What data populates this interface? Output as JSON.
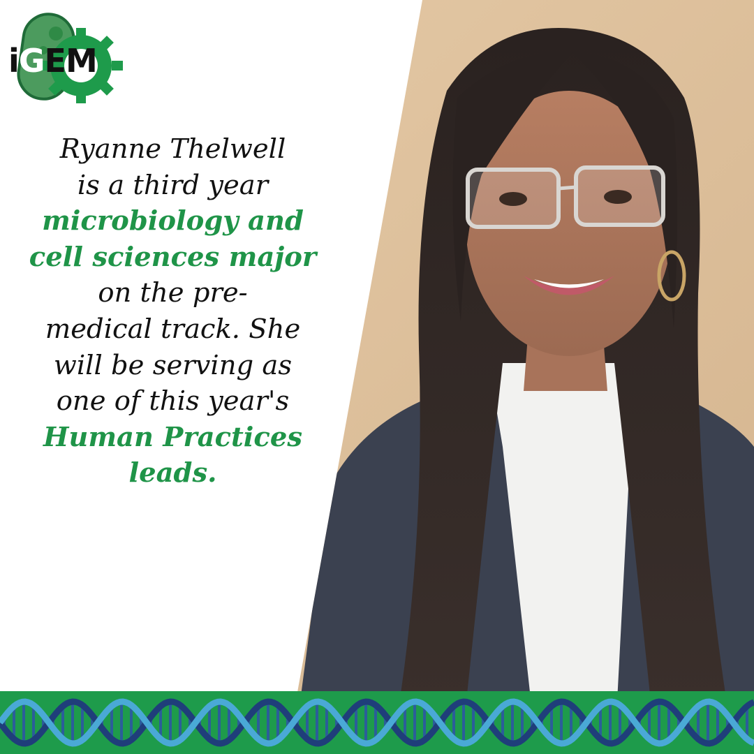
{
  "logo": {
    "letters": [
      "i",
      "G",
      "E",
      "M"
    ]
  },
  "bio": {
    "lines": [
      {
        "text": "Ryanne Thelwell",
        "highlight": false
      },
      {
        "text": "is a third year",
        "highlight": false
      },
      {
        "text": "microbiology and",
        "highlight": true
      },
      {
        "text": "cell sciences major",
        "highlight": true
      },
      {
        "text": "on the pre-",
        "highlight": false
      },
      {
        "text": "medical track. She",
        "highlight": false
      },
      {
        "text": "will be serving as",
        "highlight": false
      },
      {
        "text": "one of this year's",
        "highlight": false
      },
      {
        "text": "Human Practices",
        "highlight": true
      },
      {
        "text": "leads.",
        "highlight": true
      }
    ]
  },
  "colors": {
    "accent_green": "#1f9448",
    "logo_green": "#3f9a55",
    "banner_green": "#1e9b4b",
    "dna_dark": "#1f3e7a",
    "dna_light": "#4aa9d6",
    "wall": "#dfc3a0"
  },
  "icons": [
    "bacteria-cell-icon",
    "gear-icon",
    "dna-helix-icon"
  ]
}
